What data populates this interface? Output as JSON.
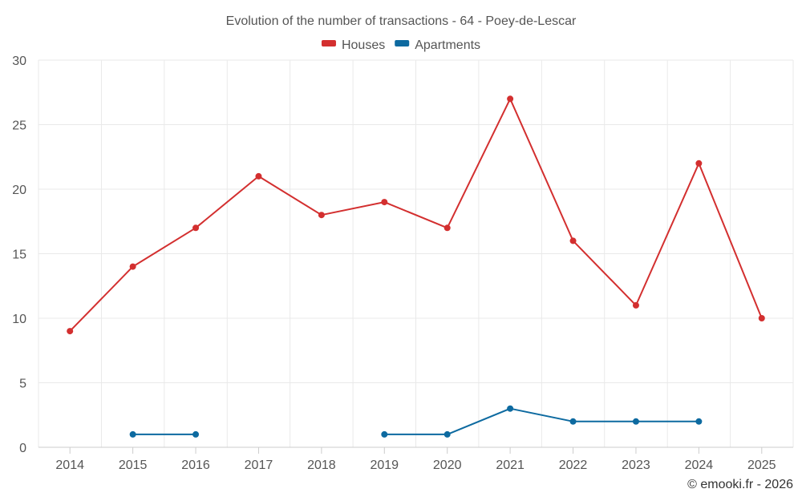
{
  "chart_data": {
    "type": "line",
    "title": "Evolution of the number of transactions - 64 - Poey-de-Lescar",
    "xlabel": "",
    "ylabel": "",
    "categories": [
      "2014",
      "2015",
      "2016",
      "2017",
      "2018",
      "2019",
      "2020",
      "2021",
      "2022",
      "2023",
      "2024",
      "2025"
    ],
    "ylim": [
      0,
      30
    ],
    "yticks": [
      0,
      5,
      10,
      15,
      20,
      25,
      30
    ],
    "grid": true,
    "legend_position": "top-center",
    "series": [
      {
        "name": "Houses",
        "color": "#d32f2f",
        "values": [
          9,
          14,
          17,
          21,
          18,
          19,
          17,
          27,
          16,
          11,
          22,
          10
        ]
      },
      {
        "name": "Apartments",
        "color": "#0d6aa0",
        "values": [
          null,
          1,
          1,
          null,
          null,
          1,
          1,
          3,
          2,
          2,
          2,
          null
        ]
      }
    ]
  },
  "credit": "© emooki.fr - 2026"
}
